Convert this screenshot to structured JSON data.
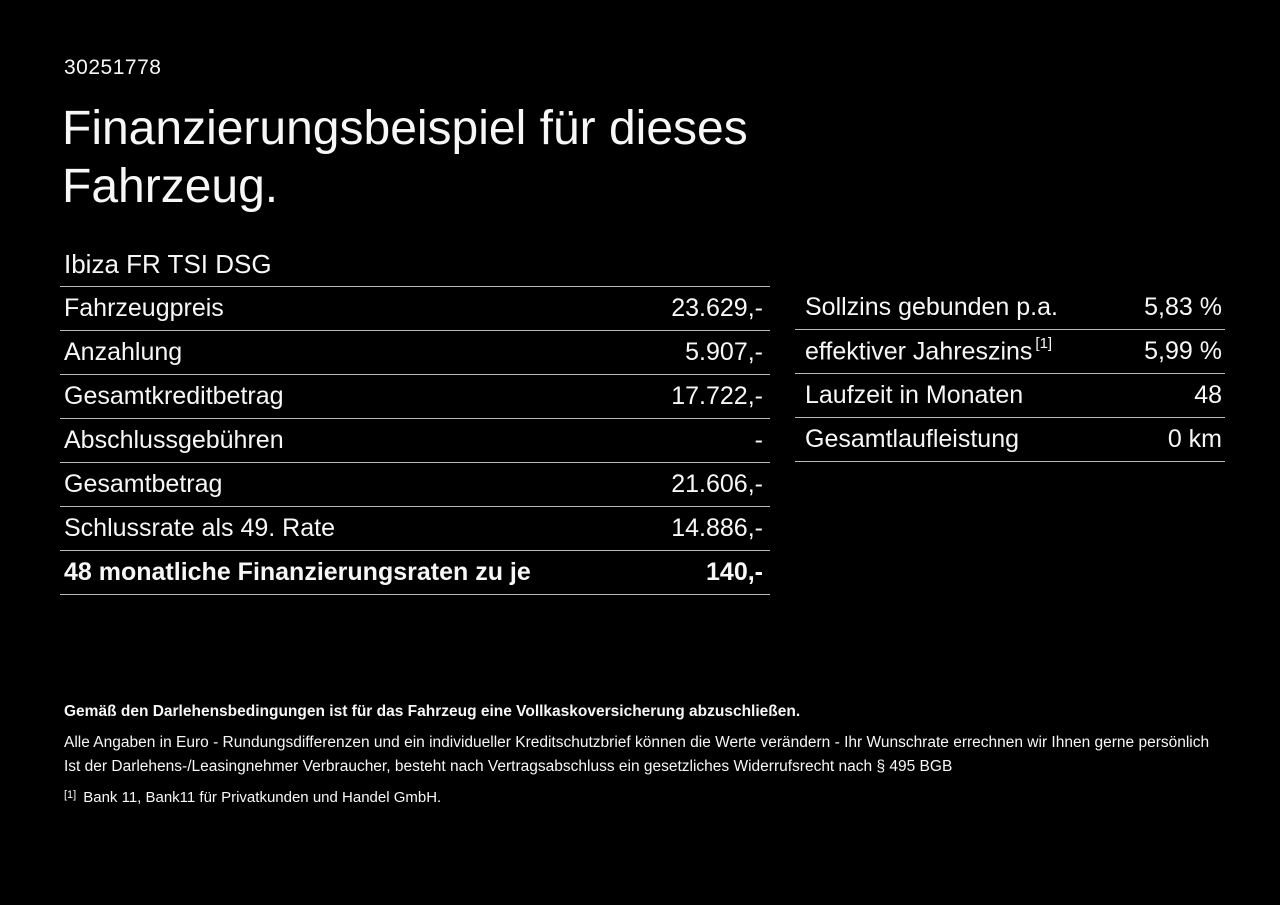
{
  "page": {
    "background_color": "#000000",
    "text_color": "#f7f7f7",
    "divider_color": "#b9b9b9"
  },
  "vehicle_id": "30251778",
  "title": {
    "line1": "Finanzierungsbeispiel für dieses",
    "line2": "Fahrzeug."
  },
  "vehicle_model": "Ibiza FR TSI DSG",
  "finance_table": {
    "rows": [
      {
        "label": "Fahrzeugpreis",
        "value": "23.629,-"
      },
      {
        "label": "Anzahlung",
        "value": "5.907,-"
      },
      {
        "label": "Gesamtkreditbetrag",
        "value": "17.722,-"
      },
      {
        "label": "Abschlussgebühren",
        "value": "-"
      },
      {
        "label": "Gesamtbetrag",
        "value": "21.606,-"
      },
      {
        "label": "Schlussrate als 49. Rate",
        "value": "14.886,-"
      },
      {
        "label": "48 monatliche Finanzierungsraten zu je",
        "value": "140,-"
      }
    ]
  },
  "conditions_table": {
    "rows": [
      {
        "label": "Sollzins gebunden p.a.",
        "value": "5,83 %"
      },
      {
        "label": "effektiver Jahreszins",
        "sup": "[1]",
        "value": "5,99 %"
      },
      {
        "label": "Laufzeit in Monaten",
        "value": "48"
      },
      {
        "label": "Gesamtlaufleistung",
        "value": "0 km"
      }
    ]
  },
  "footer": {
    "insurance_note": "Gemäß den Darlehensbedingungen ist für das Fahrzeug eine Vollkaskoversicherung abzuschließen.",
    "disclaimer_line1": "Alle Angaben in Euro - Rundungsdifferenzen und ein individueller Kreditschutzbrief können die Werte verändern - Ihr Wunschrate errechnen wir Ihnen gerne persönlich",
    "disclaimer_line2": "Ist der Darlehens-/Leasingnehmer Verbraucher, besteht nach Vertragsabschluss ein gesetzliches Widerrufsrecht nach § 495 BGB",
    "footnote_marker": "[1]",
    "footnote_text": "Bank 11, Bank11 für Privatkunden und Handel GmbH."
  }
}
